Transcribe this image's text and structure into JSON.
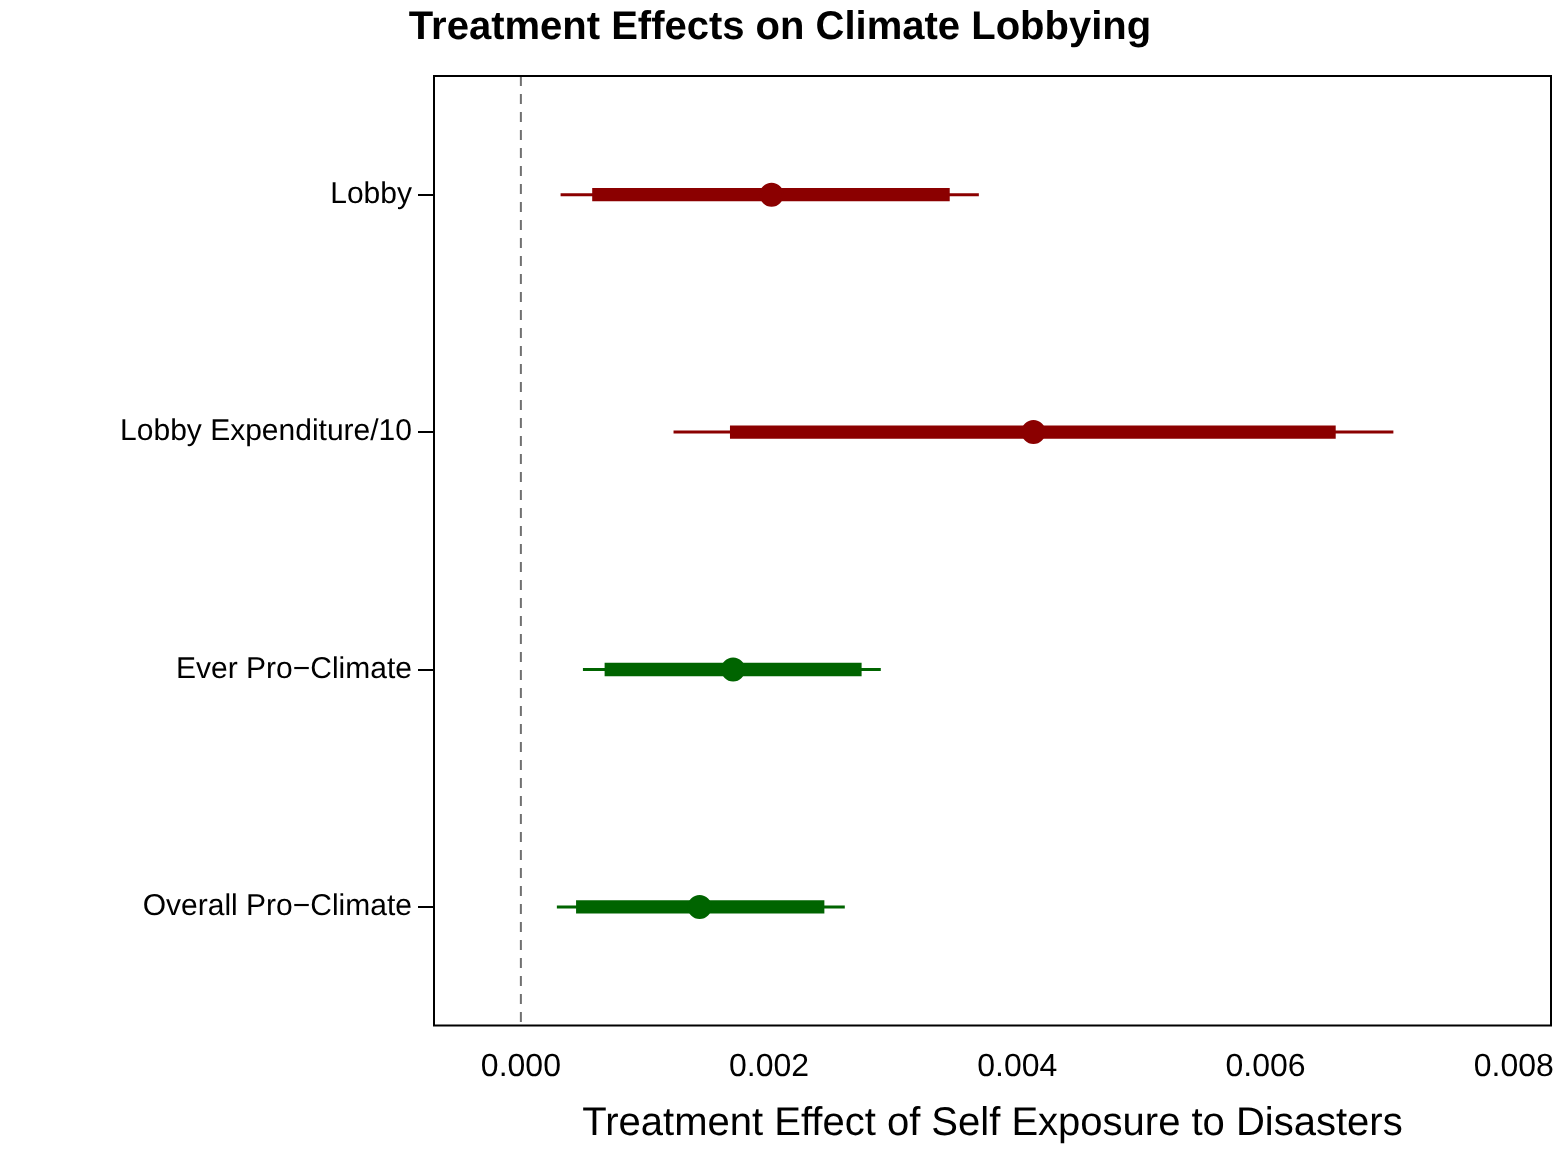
{
  "chart_data": {
    "type": "scatter",
    "title": "Treatment Effects on Climate Lobbying",
    "xlabel": "Treatment Effect of Self Exposure to Disasters",
    "orientation": "horizontal",
    "marker": "circle",
    "categories": [
      "Lobby",
      "Lobby Expenditure/10",
      "Ever Pro−Climate",
      "Overall Pro−Climate"
    ],
    "xlim": [
      -0.0007,
      0.0083
    ],
    "xticks": [
      {
        "value": 0,
        "label": "0.000"
      },
      {
        "value": 0.002,
        "label": "0.002"
      },
      {
        "value": 0.004,
        "label": "0.004"
      },
      {
        "value": 0.006,
        "label": "0.006"
      },
      {
        "value": 0.008,
        "label": "0.008"
      }
    ],
    "series": [
      {
        "type": "bar",
        "base": [
          0.00058,
          0.00169,
          0.00068,
          0.00045
        ],
        "values": [
          0.00287,
          0.00487,
          0.00206,
          0.00199
        ],
        "colors": [
          "#8b0000",
          "#8b0000",
          "#006400",
          "#006400"
        ]
      },
      {
        "values": [
          0.00202,
          0.00413,
          0.00171,
          0.00144
        ],
        "errors": [
          [
            0.00032,
            0.00369
          ],
          [
            0.00123,
            0.00703
          ],
          [
            0.0005,
            0.0029
          ],
          [
            0.00029,
            0.00261
          ]
        ],
        "colors": [
          "#8b0000",
          "#8b0000",
          "#006400",
          "#006400"
        ]
      }
    ],
    "ref_lines": [
      {
        "axis": "x",
        "value": 0,
        "line_style": "dashed",
        "color": "#707070"
      }
    ]
  }
}
